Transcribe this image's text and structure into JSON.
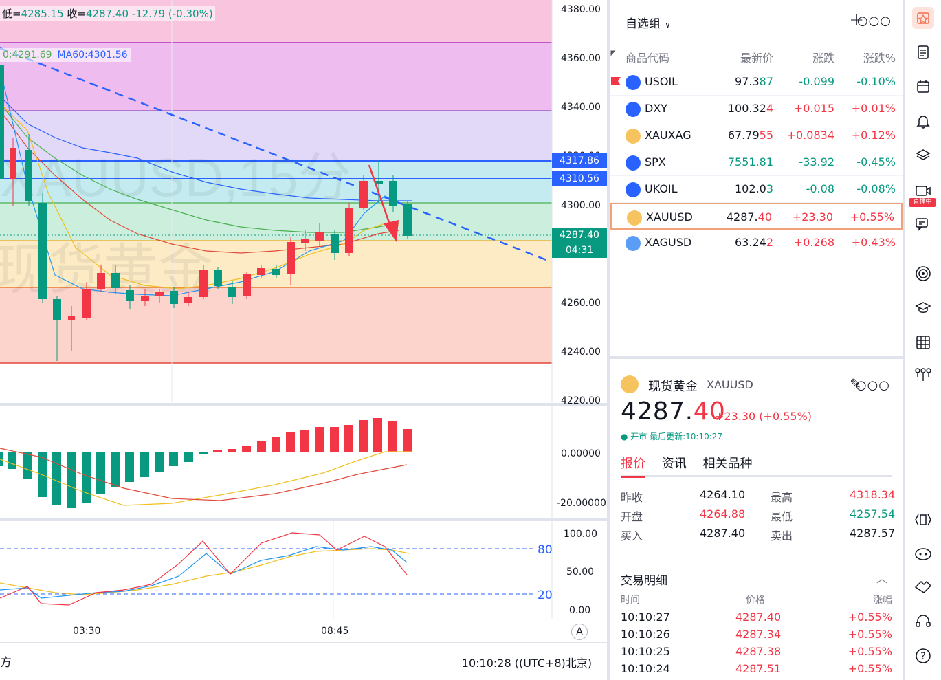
{
  "ohlc": {
    "low_label": "低=",
    "low": "4285.15",
    "close_label": "收=",
    "close": "4287.40",
    "change": "-12.79 (-0.30%)"
  },
  "ma": {
    "ma_a": "0:4291.69",
    "ma60": "MA60:4301.56"
  },
  "watermark": {
    "line1": "XAUUSD,15分",
    "line2": "现货黄金"
  },
  "price_axis": [
    "4380.00",
    "4360.00",
    "4340.00",
    "4320.00",
    "4300.00",
    "4260.00",
    "4240.00",
    "4220.00"
  ],
  "price_tags": {
    "p1": "4317.86",
    "p2": "4310.56",
    "current": "4287.40",
    "countdown": "04:31"
  },
  "macd_axis": [
    "0.00000",
    "-20.00000"
  ],
  "kdj_axis": [
    "100.00",
    "50.00",
    "0.00"
  ],
  "kdj_levels": [
    "80",
    "20"
  ],
  "time_axis": [
    "03:30",
    "08:45"
  ],
  "bottom": {
    "timeframe": "方",
    "clock": "10:10:28 ((UTC+8)北京)",
    "auto": "A"
  },
  "watchlist": {
    "title": "自选组",
    "col_symbol": "商品代码",
    "col_last": "最新价",
    "col_chg": "涨跌",
    "col_chgp": "涨跌%",
    "rows": [
      {
        "sym": "USOIL",
        "last_a": "97.3",
        "last_b": "87",
        "chg": "-0.099",
        "chgp": "-0.10%",
        "dir": "down",
        "icon": "oil-icon",
        "color": "#2962ff"
      },
      {
        "sym": "DXY",
        "last_a": "100.32",
        "last_b": "4",
        "chg": "+0.015",
        "chgp": "+0.01%",
        "dir": "up",
        "icon": "us-flag-icon",
        "color": "#2962ff"
      },
      {
        "sym": "XAUXAG",
        "last_a": "67.79",
        "last_b": "55",
        "chg": "+0.0834",
        "chgp": "+0.12%",
        "dir": "up",
        "icon": "gold-silver-icon",
        "color": "#f7c35f"
      },
      {
        "sym": "SPX",
        "last_a": "7551.81",
        "last_b": "",
        "chg": "-33.92",
        "chgp": "-0.45%",
        "dir": "down",
        "icon": "us-flag-icon",
        "color": "#2962ff"
      },
      {
        "sym": "UKOIL",
        "last_a": "102.0",
        "last_b": "3",
        "chg": "-0.08",
        "chgp": "-0.08%",
        "dir": "down",
        "icon": "oil-icon",
        "color": "#2962ff"
      },
      {
        "sym": "XAUUSD",
        "last_a": "4287.",
        "last_b": "40",
        "chg": "+23.30",
        "chgp": "+0.55%",
        "dir": "up",
        "icon": "gold-icon",
        "color": "#f7c35f"
      },
      {
        "sym": "XAGUSD",
        "last_a": "63.24",
        "last_b": "2",
        "chg": "+0.268",
        "chgp": "+0.43%",
        "dir": "up",
        "icon": "silver-icon",
        "color": "#5b9cf6"
      }
    ]
  },
  "detail": {
    "name": "现货黄金",
    "code": "XAUUSD",
    "price_int": "4287.",
    "price_frac": "40",
    "change": "+23.30 (+0.55%)",
    "status": "● 开市 最后更新:10:10:27",
    "tabs": [
      "报价",
      "资讯",
      "相关品种"
    ],
    "quote": [
      {
        "l1": "昨收",
        "v1": "4264.10",
        "c1": "#131722",
        "l2": "最高",
        "v2": "4318.34",
        "c2": "#f23645"
      },
      {
        "l1": "开盘",
        "v1": "4264.88",
        "c1": "#f23645",
        "l2": "最低",
        "v2": "4257.54",
        "c2": "#089981"
      },
      {
        "l1": "买入",
        "v1": "4287.40",
        "c1": "#131722",
        "l2": "卖出",
        "v2": "4287.57",
        "c2": "#131722"
      }
    ],
    "trades_title": "交易明细",
    "trades_head": {
      "t": "时间",
      "p": "价格",
      "c": "涨幅"
    },
    "trades": [
      {
        "t": "10:10:27",
        "p": "4287.40",
        "c": "+0.55%"
      },
      {
        "t": "10:10:26",
        "p": "4287.34",
        "c": "+0.55%"
      },
      {
        "t": "10:10:25",
        "p": "4287.38",
        "c": "+0.55%"
      },
      {
        "t": "10:10:24",
        "p": "4287.51",
        "c": "+0.55%"
      }
    ]
  },
  "toolbar": {
    "live_badge": "直播中"
  }
}
